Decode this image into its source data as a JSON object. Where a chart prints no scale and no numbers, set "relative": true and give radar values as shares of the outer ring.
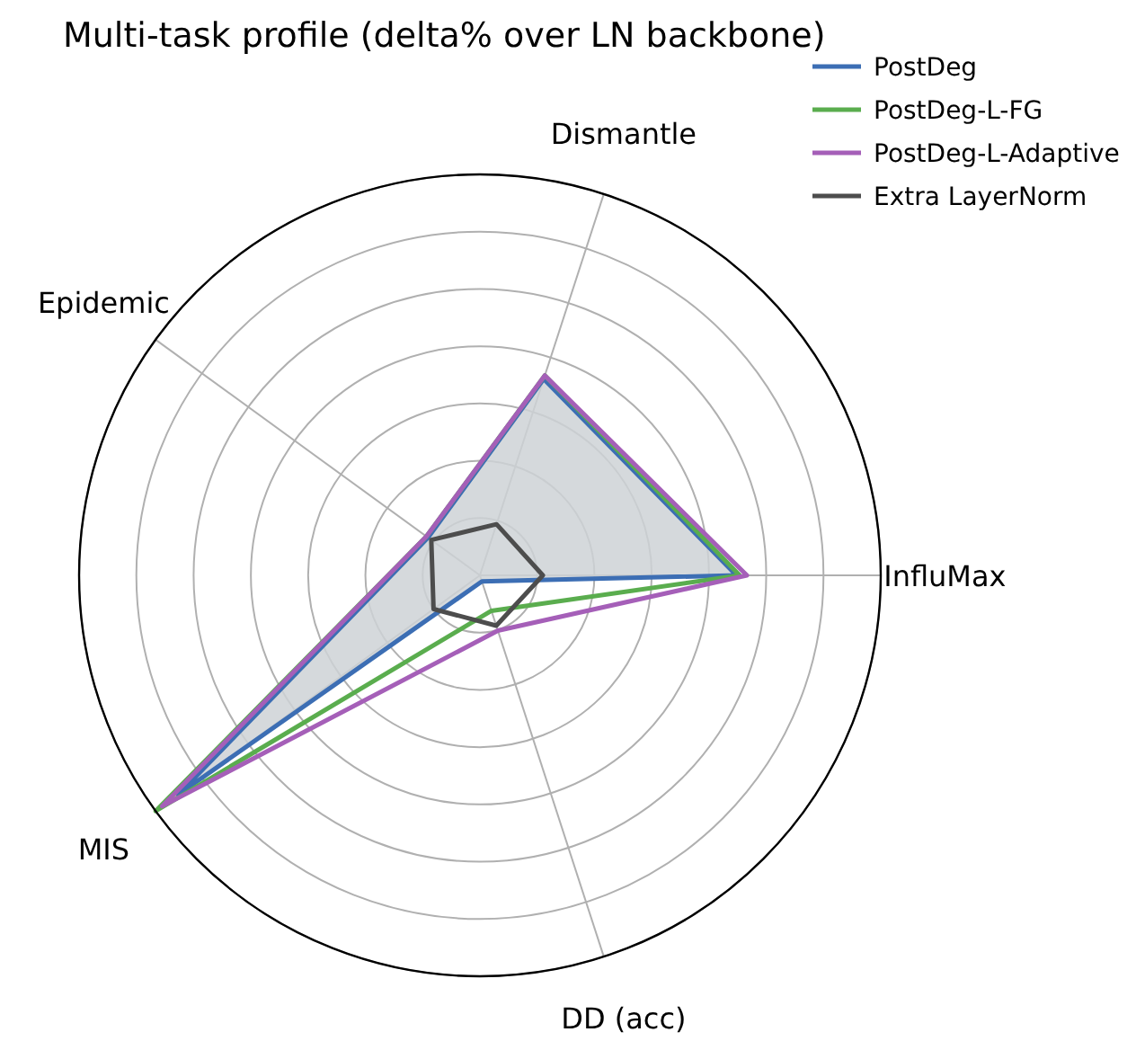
{
  "chart_data": {
    "type": "radar",
    "title": "Multi-task profile (delta% over LN backbone)",
    "relative": true,
    "grid": true,
    "legend": "top right",
    "categories": [
      "Dismantle",
      "InfluMax",
      "DD (acc)",
      "MIS",
      "Epidemic"
    ],
    "series": [
      {
        "name": "PostDeg",
        "type": "area",
        "color": "#3c6eb4",
        "values": [
          0.515,
          0.64,
          0.016,
          0.93,
          0.16
        ]
      },
      {
        "name": "PostDeg-L-FG",
        "color": "#5aad4e",
        "values": [
          0.524,
          0.648,
          0.093,
          1.0,
          0.165
        ]
      },
      {
        "name": "PostDeg-L-Adaptive",
        "color": "#a55fb8",
        "values": [
          0.524,
          0.666,
          0.145,
          0.98,
          0.165
        ]
      },
      {
        "name": "Extra LayerNorm",
        "color": "#4d4d4d",
        "values": [
          0.134,
          0.157,
          0.132,
          0.143,
          0.15
        ]
      }
    ]
  }
}
